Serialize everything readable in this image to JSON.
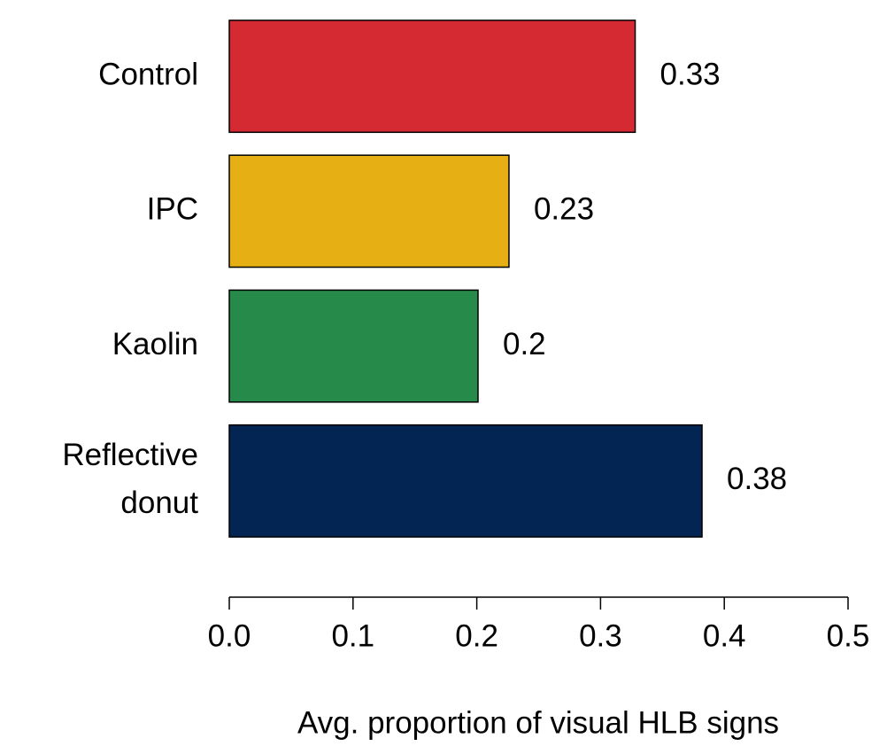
{
  "chart_data": {
    "type": "barh",
    "categories": [
      "Control",
      "IPC",
      "Kaolin",
      "Reflective donut"
    ],
    "values": [
      0.328,
      0.226,
      0.201,
      0.382
    ],
    "value_labels": [
      "0.33",
      "0.23",
      "0.2",
      "0.38"
    ],
    "colors": [
      "#d62a33",
      "#e6b014",
      "#268a4a",
      "#022554"
    ],
    "xlabel": "Avg. proportion of visual HLB signs",
    "xlim": [
      0,
      0.5
    ],
    "xticks": [
      {
        "value": 0,
        "label": "0.0"
      },
      0.1,
      0.2,
      0.3,
      0.4,
      0.5
    ]
  }
}
